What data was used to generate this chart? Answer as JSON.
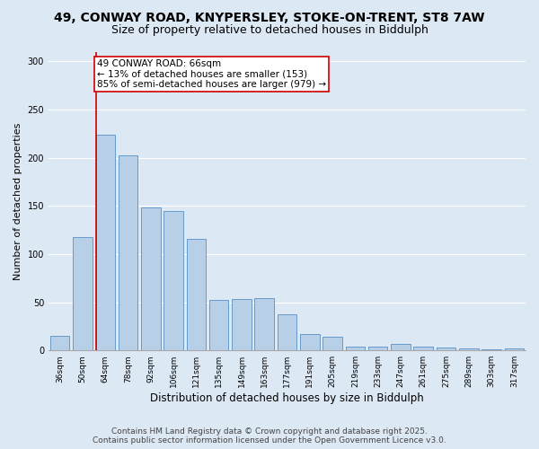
{
  "title_line1": "49, CONWAY ROAD, KNYPERSLEY, STOKE-ON-TRENT, ST8 7AW",
  "title_line2": "Size of property relative to detached houses in Biddulph",
  "xlabel": "Distribution of detached houses by size in Biddulph",
  "ylabel": "Number of detached properties",
  "categories": [
    "36sqm",
    "50sqm",
    "64sqm",
    "78sqm",
    "92sqm",
    "106sqm",
    "121sqm",
    "135sqm",
    "149sqm",
    "163sqm",
    "177sqm",
    "191sqm",
    "205sqm",
    "219sqm",
    "233sqm",
    "247sqm",
    "261sqm",
    "275sqm",
    "289sqm",
    "303sqm",
    "317sqm"
  ],
  "values": [
    15,
    118,
    224,
    202,
    148,
    145,
    116,
    52,
    53,
    54,
    37,
    17,
    14,
    4,
    4,
    7,
    4,
    3,
    2,
    1,
    2
  ],
  "bar_color": "#b8cfe8",
  "bar_edge_color": "#6699cc",
  "background_color": "#dde8f5",
  "grid_color": "#ffffff",
  "annotation_text": "49 CONWAY ROAD: 66sqm\n← 13% of detached houses are smaller (153)\n85% of semi-detached houses are larger (979) →",
  "annotation_box_color": "#ffffff",
  "annotation_box_edge": "#cc0000",
  "vline_color": "#cc0000",
  "vline_x_index": 2,
  "ylim": [
    0,
    310
  ],
  "yticks": [
    0,
    50,
    100,
    150,
    200,
    250,
    300
  ],
  "footer_line1": "Contains HM Land Registry data © Crown copyright and database right 2025.",
  "footer_line2": "Contains public sector information licensed under the Open Government Licence v3.0.",
  "title_fontsize": 10,
  "subtitle_fontsize": 9,
  "axis_label_fontsize": 8,
  "tick_fontsize": 6.5,
  "annotation_fontsize": 7.5,
  "footer_fontsize": 6.5
}
